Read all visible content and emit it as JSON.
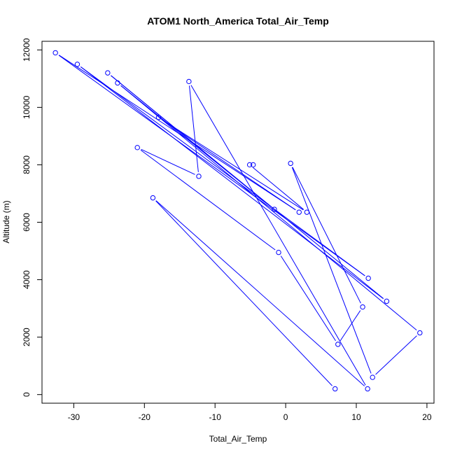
{
  "chart_data": {
    "type": "line",
    "title": "ATOM1 North_America Total_Air_Temp",
    "xlabel": "Total_Air_Temp",
    "ylabel": "Altitude (m)",
    "xlim": [
      -34.5,
      21
    ],
    "ylim": [
      -300,
      12300
    ],
    "xticks": [
      -30,
      -20,
      -10,
      0,
      10,
      20
    ],
    "yticks": [
      0,
      2000,
      4000,
      6000,
      8000,
      10000,
      12000
    ],
    "grid": false,
    "line_color": "#0000ff",
    "marker": "open-circle",
    "series": [
      {
        "x": [
          7.0,
          -18.8,
          11.6,
          -13.7,
          -12.3,
          -21.0,
          -1.0,
          7.4,
          10.9,
          0.7,
          12.3,
          19.0,
          -23.8,
          -1.6,
          -25.2,
          14.3,
          -29.5,
          11.7,
          -32.6,
          1.9,
          -18.0,
          3.0,
          -5.1,
          -4.6
        ],
        "y": [
          200,
          6850,
          200,
          10900,
          7600,
          8600,
          4950,
          1750,
          3050,
          8050,
          600,
          2150,
          10850,
          6450,
          11200,
          3250,
          11500,
          4050,
          11900,
          6350,
          9650,
          6350,
          8000,
          8000
        ]
      }
    ]
  }
}
